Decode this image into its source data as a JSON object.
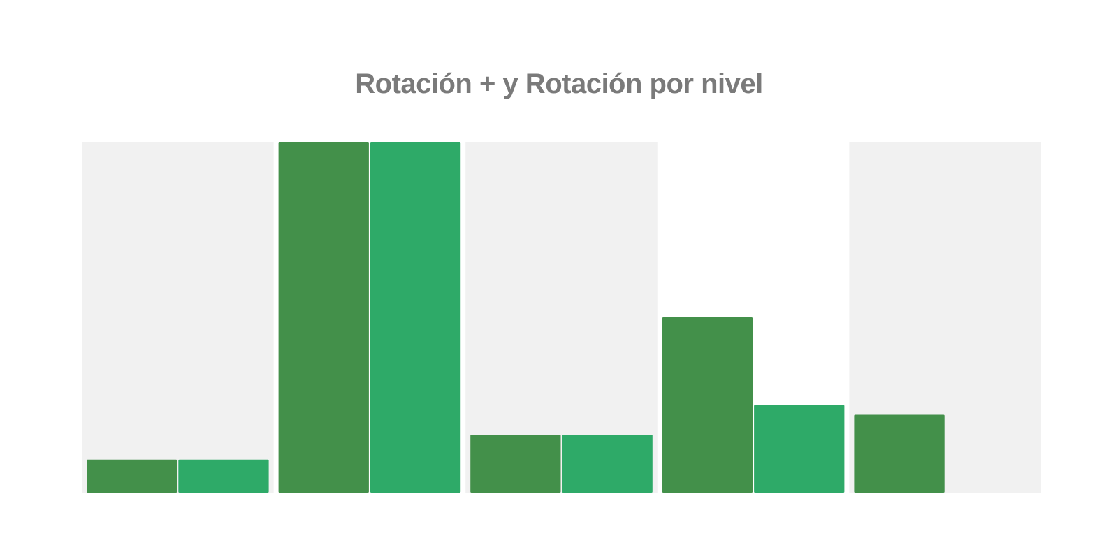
{
  "chart_data": {
    "type": "bar",
    "title": "Rotación + y Rotación por nivel",
    "xlabel": "",
    "ylabel": "",
    "categories": [
      "",
      "",
      "",
      "",
      ""
    ],
    "series": [
      {
        "values": [
          9.4,
          100,
          16.5,
          50,
          22.2
        ]
      },
      {
        "values": [
          9.4,
          100,
          16.5,
          25,
          null
        ]
      }
    ],
    "ylim": [
      0,
      100
    ],
    "grid": false,
    "legend": "none",
    "colors": {
      "series": [
        "#43904a",
        "#2eaa68"
      ],
      "band": "#f1f1f1"
    }
  }
}
